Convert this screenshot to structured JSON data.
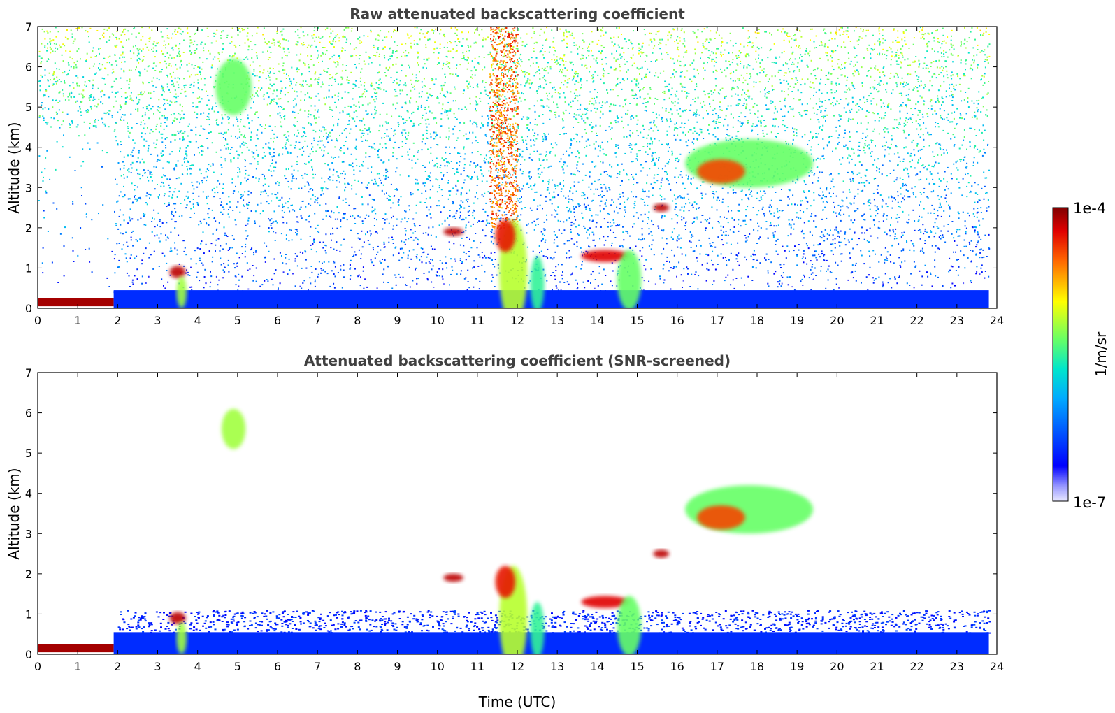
{
  "chart_data": [
    {
      "type": "heatmap",
      "title": "Raw attenuated backscattering coefficient",
      "xlabel": "",
      "ylabel": "Altitude (km)",
      "xlim": [
        0,
        24
      ],
      "ylim": [
        0,
        7
      ],
      "x_ticks": [
        0,
        1,
        2,
        3,
        4,
        5,
        6,
        7,
        8,
        9,
        10,
        11,
        12,
        13,
        14,
        15,
        16,
        17,
        18,
        19,
        20,
        21,
        22,
        23,
        24
      ],
      "y_ticks": [
        0,
        1,
        2,
        3,
        4,
        5,
        6,
        7
      ],
      "data_end_time": 23.8,
      "grid": false,
      "features": [
        {
          "name": "surface layer",
          "t0": 0,
          "t1": 1.9,
          "z0": 0.05,
          "z1": 0.25,
          "level": 0.97
        },
        {
          "name": "boundary layer",
          "t0": 1.9,
          "t1": 23.8,
          "z0": 0,
          "z1": 0.45,
          "level": 0.18
        },
        {
          "name": "low cloud",
          "t": 3.5,
          "z": 0.9,
          "w": 0.4,
          "h": 0.3,
          "level": 0.95
        },
        {
          "name": "plume",
          "t": 3.6,
          "z": 0.4,
          "w": 0.25,
          "h": 0.8,
          "level": 0.6
        },
        {
          "name": "high aerosol",
          "t": 4.9,
          "z": 5.5,
          "w": 0.9,
          "h": 1.4,
          "level": 0.55
        },
        {
          "name": "cloud",
          "t": 10.4,
          "z": 1.9,
          "w": 0.5,
          "h": 0.2,
          "level": 0.95
        },
        {
          "name": "convective cloud",
          "t": 11.9,
          "z": 0.9,
          "w": 0.7,
          "h": 2.6,
          "level": 0.62
        },
        {
          "name": "convective cloud top",
          "t": 11.7,
          "z": 1.8,
          "w": 0.5,
          "h": 0.8,
          "level": 0.9
        },
        {
          "name": "plume",
          "t": 12.5,
          "z": 0.6,
          "w": 0.35,
          "h": 1.4,
          "level": 0.5
        },
        {
          "name": "cloud",
          "t": 14.2,
          "z": 1.3,
          "w": 1.2,
          "h": 0.3,
          "level": 0.92
        },
        {
          "name": "plume",
          "t": 14.8,
          "z": 0.7,
          "w": 0.6,
          "h": 1.5,
          "level": 0.55
        },
        {
          "name": "cloud",
          "t": 15.6,
          "z": 2.5,
          "w": 0.4,
          "h": 0.2,
          "level": 0.95
        },
        {
          "name": "mid-level cloud",
          "t": 17.8,
          "z": 3.6,
          "w": 3.2,
          "h": 1.2,
          "level": 0.55
        },
        {
          "name": "mid-level cloud core",
          "t": 17.1,
          "z": 3.4,
          "w": 1.2,
          "h": 0.6,
          "level": 0.85
        }
      ]
    },
    {
      "type": "heatmap",
      "title": "Attenuated backscattering coefficient (SNR-screened)",
      "xlabel": "Time (UTC)",
      "ylabel": "Altitude (km)",
      "xlim": [
        0,
        24
      ],
      "ylim": [
        0,
        7
      ],
      "x_ticks": [
        0,
        1,
        2,
        3,
        4,
        5,
        6,
        7,
        8,
        9,
        10,
        11,
        12,
        13,
        14,
        15,
        16,
        17,
        18,
        19,
        20,
        21,
        22,
        23,
        24
      ],
      "y_ticks": [
        0,
        1,
        2,
        3,
        4,
        5,
        6,
        7
      ],
      "data_end_time": 23.8,
      "grid": false,
      "features": [
        {
          "name": "surface layer",
          "t0": 0,
          "t1": 1.9,
          "z0": 0.05,
          "z1": 0.25,
          "level": 0.97
        },
        {
          "name": "boundary layer",
          "t0": 1.9,
          "t1": 23.8,
          "z0": 0,
          "z1": 0.55,
          "level": 0.18
        },
        {
          "name": "low cloud",
          "t": 3.5,
          "z": 0.9,
          "w": 0.4,
          "h": 0.3,
          "level": 0.95
        },
        {
          "name": "plume",
          "t": 3.6,
          "z": 0.4,
          "w": 0.25,
          "h": 0.8,
          "level": 0.6
        },
        {
          "name": "high aerosol",
          "t": 4.9,
          "z": 5.6,
          "w": 0.6,
          "h": 1.0,
          "level": 0.6
        },
        {
          "name": "cloud",
          "t": 10.4,
          "z": 1.9,
          "w": 0.5,
          "h": 0.2,
          "level": 0.95
        },
        {
          "name": "convective cloud",
          "t": 11.9,
          "z": 0.9,
          "w": 0.7,
          "h": 2.6,
          "level": 0.62
        },
        {
          "name": "convective cloud top",
          "t": 11.7,
          "z": 1.8,
          "w": 0.5,
          "h": 0.8,
          "level": 0.9
        },
        {
          "name": "plume",
          "t": 12.5,
          "z": 0.6,
          "w": 0.35,
          "h": 1.4,
          "level": 0.5
        },
        {
          "name": "cloud",
          "t": 14.2,
          "z": 1.3,
          "w": 1.2,
          "h": 0.3,
          "level": 0.92
        },
        {
          "name": "plume",
          "t": 14.8,
          "z": 0.7,
          "w": 0.6,
          "h": 1.5,
          "level": 0.55
        },
        {
          "name": "cloud",
          "t": 15.6,
          "z": 2.5,
          "w": 0.4,
          "h": 0.2,
          "level": 0.95
        },
        {
          "name": "mid-level cloud",
          "t": 17.8,
          "z": 3.6,
          "w": 3.2,
          "h": 1.2,
          "level": 0.55
        },
        {
          "name": "mid-level cloud core",
          "t": 17.1,
          "z": 3.4,
          "w": 1.2,
          "h": 0.6,
          "level": 0.85
        }
      ]
    }
  ],
  "colorbar": {
    "label": "1/m/sr",
    "max_label": "1e-4",
    "min_label": "1e-7",
    "scale": "log",
    "colormap": "jet",
    "min_color": "#e8e8ff",
    "max_color": "#800000"
  },
  "colors": {
    "title_text": "#404040",
    "axis": "#000000",
    "background": "#ffffff"
  }
}
